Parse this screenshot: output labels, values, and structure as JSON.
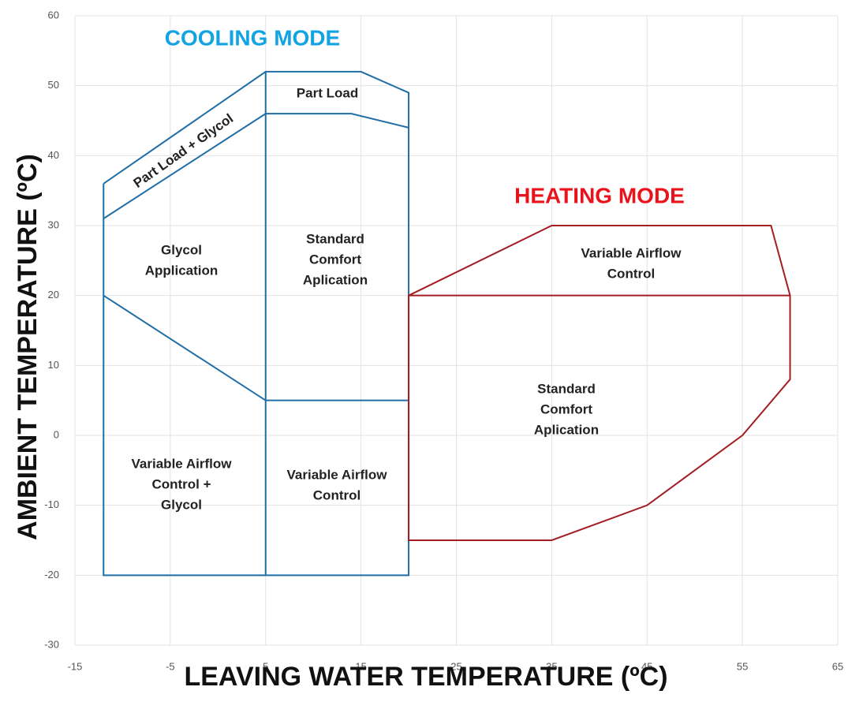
{
  "chart_data": {
    "type": "line",
    "xlabel": "LEAVING WATER TEMPERATURE (ºC)",
    "ylabel": "AMBIENT TEMPERATURE (ºC)",
    "xlim": [
      -15,
      65
    ],
    "xticks": [
      -15,
      -5,
      5,
      15,
      25,
      35,
      45,
      55,
      65
    ],
    "ylim": [
      -30,
      60
    ],
    "yticks": [
      -30,
      -20,
      -10,
      0,
      10,
      20,
      30,
      40,
      50,
      60
    ],
    "grid": true,
    "titles": [
      {
        "text": "COOLING MODE",
        "color": "#12a3e3"
      },
      {
        "text": "HEATING MODE",
        "color": "#e8141c"
      }
    ],
    "series": [
      {
        "color": "#1f6ea6",
        "x": [
          -12,
          5,
          15,
          20,
          20,
          -12,
          -12
        ],
        "values": [
          36,
          52,
          52,
          49,
          -20,
          -20,
          36
        ]
      },
      {
        "color": "#1f6ea6",
        "x": [
          -12,
          5,
          14,
          20
        ],
        "values": [
          31,
          46,
          46,
          44
        ]
      },
      {
        "color": "#1f6ea6",
        "x": [
          -12,
          5,
          20
        ],
        "values": [
          20,
          5,
          5
        ]
      },
      {
        "color": "#1f6ea6",
        "x": [
          5,
          5
        ],
        "values": [
          52,
          -20
        ]
      },
      {
        "color": "#a31d22",
        "x": [
          20,
          35,
          58,
          60,
          60,
          55,
          45,
          35,
          20,
          20,
          60
        ],
        "values": [
          20,
          30,
          30,
          20,
          8,
          0,
          -10,
          -15,
          -15,
          20,
          20
        ]
      }
    ],
    "annotations": [
      {
        "lines": [
          "Part Load + Glycol"
        ]
      },
      {
        "lines": [
          "Part Load"
        ]
      },
      {
        "lines": [
          "Glycol",
          "Application"
        ]
      },
      {
        "lines": [
          "Standard",
          "Comfort",
          "Aplication"
        ]
      },
      {
        "lines": [
          "Variable Airflow",
          "Control +",
          "Glycol"
        ]
      },
      {
        "lines": [
          "Variable Airflow",
          "Control"
        ]
      },
      {
        "lines": [
          "Variable Airflow",
          "Control"
        ]
      },
      {
        "lines": [
          "Standard",
          "Comfort",
          "Aplication"
        ]
      }
    ]
  }
}
